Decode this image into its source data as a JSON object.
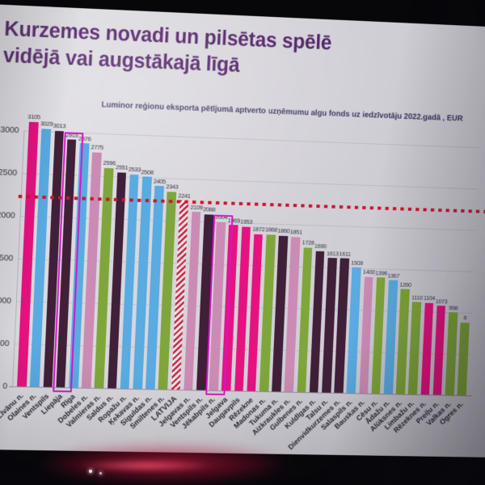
{
  "slide": {
    "title_line1": "Kurzemes novadi un pilsētas spēlē",
    "title_line2": "vidējā vai augstākajā līgā",
    "subtitle": "Luminor reģionu eksporta pētījumā aptverto uzņēmumu algu fonds uz iedzīvotāju 2022.gadā , EUR"
  },
  "chart_data": {
    "type": "bar",
    "title": "Kurzemes novadi un pilsētas spēlē vidējā vai augstākajā līgā",
    "subtitle": "Luminor reģionu eksporta pētījumā aptverto uzņēmumu algu fonds uz iedzīvotāju 2022.gadā , EUR",
    "ylabel": "EUR",
    "ylim": [
      0,
      3100
    ],
    "yticks": [
      0,
      500,
      1000,
      1500,
      2000,
      2500,
      3000
    ],
    "grid": true,
    "legend": false,
    "reference_line": {
      "value": 2241,
      "color": "#c81530",
      "style": "dotted"
    },
    "highlight_box_color": "#d116c4",
    "palette": {
      "magenta": "#e0147e",
      "blue": "#5caade",
      "dark": "#3f1f38",
      "mauve": "#c98cb4",
      "green": "#80a53e",
      "stripe_red": "#c41834",
      "stripe_bg": "#efecef"
    },
    "bars": [
      {
        "label": "Līvānu n.",
        "value": 3105,
        "color": "magenta"
      },
      {
        "label": "Olaines n.",
        "value": 3029,
        "color": "blue"
      },
      {
        "label": "Ventspils",
        "value": 3013,
        "color": "dark"
      },
      {
        "label": "Liepāja",
        "value": 2915,
        "color": "dark",
        "boxed": true
      },
      {
        "label": "Rīga",
        "value": 2876,
        "color": "blue"
      },
      {
        "label": "Dobeles n.",
        "value": 2775,
        "color": "mauve"
      },
      {
        "label": "Valmieras n.",
        "value": 2596,
        "color": "green"
      },
      {
        "label": "Saldus n.",
        "value": 2551,
        "color": "dark"
      },
      {
        "label": "Ropažu n.",
        "value": 2533,
        "color": "blue"
      },
      {
        "label": "Ķekavas n.",
        "value": 2508,
        "color": "blue"
      },
      {
        "label": "Siguldas n.",
        "value": 2405,
        "color": "blue"
      },
      {
        "label": "Smiltenes n.",
        "value": 2343,
        "color": "green"
      },
      {
        "label": "LATVIJA",
        "value": 2241,
        "color": "stripes",
        "bold": true
      },
      {
        "label": "Jelgavas n.",
        "value": 2109,
        "color": "mauve"
      },
      {
        "label": "Ventspils n.",
        "value": 2088,
        "color": "dark"
      },
      {
        "label": "Jēkabpils n.",
        "value": 2004,
        "color": "mauve",
        "boxed": true
      },
      {
        "label": "Jelgava",
        "value": 1969,
        "color": "magenta"
      },
      {
        "label": "Daugavpils",
        "value": 1953,
        "color": "magenta"
      },
      {
        "label": "Rēzekne",
        "value": 1872,
        "color": "magenta"
      },
      {
        "label": "Madonas n.",
        "value": 1868,
        "color": "green"
      },
      {
        "label": "Tukuma n.",
        "value": 1860,
        "color": "dark"
      },
      {
        "label": "Aizkraukles n.",
        "value": 1851,
        "color": "mauve"
      },
      {
        "label": "Gulbenes n.",
        "value": 1728,
        "color": "green"
      },
      {
        "label": "Kuldīgas n.",
        "value": 1690,
        "color": "dark"
      },
      {
        "label": "Talsu n.",
        "value": 1613,
        "color": "dark"
      },
      {
        "label": "Dienvidkurzemes n.",
        "value": 1611,
        "color": "dark"
      },
      {
        "label": "Salaspils n.",
        "value": 1508,
        "color": "blue"
      },
      {
        "label": "Bauskas n.",
        "value": 1400,
        "color": "mauve"
      },
      {
        "label": "Cēsu n.",
        "value": 1396,
        "color": "green"
      },
      {
        "label": "Ādažu n.",
        "value": 1367,
        "color": "blue"
      },
      {
        "label": "Alūksnes n.",
        "value": 1260,
        "color": "green"
      },
      {
        "label": "Limbažu n.",
        "value": 1110,
        "color": "green"
      },
      {
        "label": "Rēzeknes n.",
        "value": 1104,
        "color": "magenta"
      },
      {
        "label": "Preiļu n.",
        "value": 1073,
        "color": "magenta"
      },
      {
        "label": "Valkas n.",
        "value": 998,
        "color": "green"
      },
      {
        "label": "Ogres n.",
        "value": 880,
        "color": "green",
        "value_label": "8",
        "partial": true
      }
    ]
  }
}
